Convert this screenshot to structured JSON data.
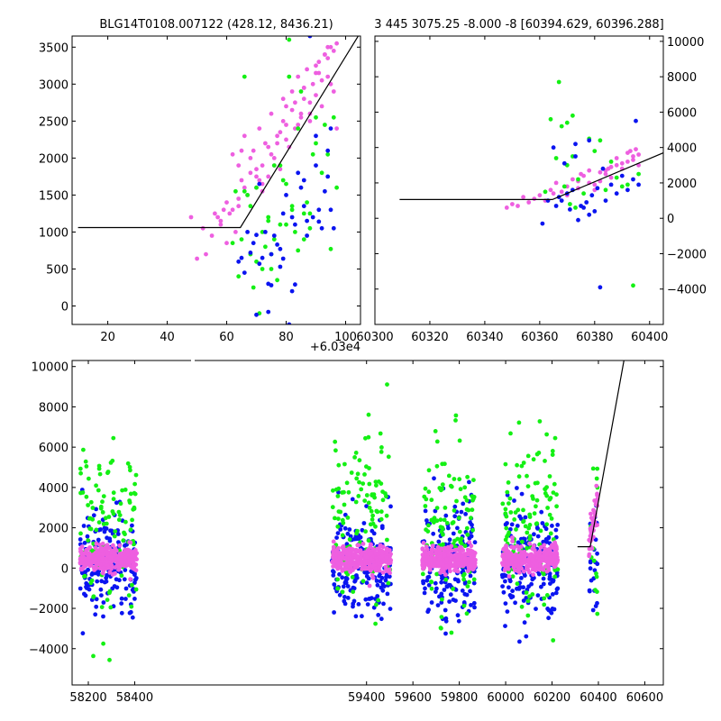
{
  "figure": {
    "top_left_title": "BLG14T0108.007122 (428.12, 8436.21)",
    "top_right_title": "3 445 3075.25 -8.000 -8 [60394.629, 60396.288]",
    "offset_text": "+6.03e4",
    "colors": {
      "blue": "#0a14f0",
      "green": "#14f014",
      "magenta": "#ee5fe0",
      "fit": "#000000"
    }
  },
  "chart_data": [
    {
      "type": "scatter",
      "panel": "top-left",
      "title": "BLG14T0108.007122 (428.12, 8436.21)",
      "xlim": [
        8,
        105
      ],
      "ylim": [
        -250,
        3650
      ],
      "x_offset_label": "+6.03e4",
      "xticks": [
        20,
        40,
        60,
        80,
        100
      ],
      "xtick_labels": [
        "20",
        "40",
        "60",
        "80",
        "100"
      ],
      "yticks": [
        0,
        500,
        1000,
        1500,
        2000,
        2500,
        3000,
        3500
      ],
      "ytick_labels": [
        "0",
        "500",
        "1000",
        "1500",
        "2000",
        "2500",
        "3000",
        "3500"
      ],
      "fit_line": {
        "x": [
          10,
          64.6,
          105
        ],
        "y": [
          1060,
          1060,
          3700
        ]
      },
      "series": [
        {
          "color": "magenta",
          "x": [
            48,
            50,
            52,
            53,
            55,
            57,
            58,
            59,
            60,
            61,
            62,
            63,
            64,
            65,
            66,
            67,
            68,
            69,
            70,
            71,
            72,
            73,
            74,
            75,
            76,
            77,
            78,
            79,
            80,
            81,
            82,
            83,
            84,
            85,
            86,
            87,
            88,
            89,
            90,
            91,
            92,
            93,
            94,
            95,
            96,
            97,
            62,
            64,
            66,
            68,
            70,
            72,
            74,
            76,
            78,
            80,
            82,
            84,
            86,
            88,
            90,
            92,
            94,
            96,
            58,
            60,
            65,
            70,
            75,
            80,
            85,
            90,
            95,
            72,
            77,
            83,
            88,
            93,
            56,
            64,
            71,
            79,
            86,
            91,
            94,
            97
          ],
          "y": [
            1200,
            640,
            1050,
            700,
            950,
            1200,
            1100,
            1300,
            850,
            1250,
            2050,
            1000,
            1350,
            1700,
            2300,
            1500,
            1800,
            2100,
            1600,
            2400,
            1900,
            2200,
            1750,
            2600,
            2000,
            2300,
            1850,
            2500,
            2700,
            2150,
            2900,
            2400,
            3100,
            2600,
            2800,
            3200,
            2500,
            3000,
            2850,
            3300,
            2700,
            3400,
            3100,
            3500,
            2900,
            3550,
            1300,
            1450,
            1600,
            2000,
            1750,
            1550,
            2150,
            1900,
            2350,
            2250,
            2650,
            2450,
            2950,
            2750,
            3150,
            3050,
            3350,
            3450,
            1150,
            1400,
            2100,
            1850,
            2050,
            2450,
            2550,
            3250,
            3000,
            1650,
            2200,
            2750,
            2600,
            3400,
            1250,
            1900,
            1700,
            2800,
            2950,
            3150,
            3500,
            2400
          ]
        },
        {
          "color": "green",
          "x": [
            62,
            64,
            65,
            66,
            67,
            68,
            69,
            70,
            71,
            72,
            73,
            74,
            75,
            76,
            77,
            78,
            79,
            80,
            81,
            82,
            83,
            84,
            85,
            86,
            87,
            88,
            90,
            92,
            94,
            96,
            66,
            70,
            74,
            78,
            82,
            86,
            90,
            95,
            68,
            72,
            76,
            80,
            84,
            88,
            93,
            97,
            63,
            75,
            81,
            89
          ],
          "y": [
            850,
            400,
            900,
            3100,
            1500,
            700,
            250,
            1600,
            -100,
            1000,
            800,
            1200,
            500,
            900,
            350,
            1100,
            1700,
            1650,
            3600,
            1350,
            1000,
            750,
            2900,
            1250,
            1400,
            1050,
            2550,
            1800,
            2050,
            2550,
            1550,
            600,
            1150,
            1900,
            1300,
            900,
            2200,
            770,
            1350,
            500,
            1900,
            1100,
            2400,
            1250,
            2450,
            1600,
            1550,
            700,
            3100,
            2050
          ]
        },
        {
          "color": "blue",
          "x": [
            64,
            65,
            66,
            68,
            69,
            70,
            71,
            72,
            73,
            74,
            75,
            76,
            77,
            78,
            79,
            80,
            81,
            82,
            83,
            84,
            85,
            86,
            87,
            88,
            89,
            90,
            91,
            92,
            93,
            94,
            95,
            96,
            67,
            71,
            75,
            79,
            83,
            87,
            91,
            95,
            70,
            74,
            78,
            82,
            86,
            90,
            94
          ],
          "y": [
            600,
            650,
            450,
            720,
            850,
            960,
            1650,
            650,
            1000,
            -80,
            700,
            950,
            830,
            770,
            1250,
            1500,
            -250,
            1200,
            1100,
            1800,
            1600,
            1700,
            1150,
            3650,
            1200,
            1900,
            1300,
            1050,
            1550,
            1750,
            2400,
            1050,
            1000,
            570,
            280,
            640,
            290,
            950,
            1140,
            1300,
            -120,
            300,
            530,
            200,
            1350,
            2300,
            2100
          ]
        }
      ]
    },
    {
      "type": "scatter",
      "panel": "top-right",
      "title": "3 445 3075.25 -8.000 -8 [60394.629, 60396.288]",
      "xlim": [
        60300,
        60405
      ],
      "ylim": [
        -6000,
        10300
      ],
      "xticks": [
        60300,
        60320,
        60340,
        60360,
        60380,
        60400
      ],
      "xtick_labels": [
        "60300",
        "60320",
        "60340",
        "60360",
        "60380",
        "60400"
      ],
      "yticks": [
        -4000,
        -2000,
        0,
        2000,
        4000,
        6000,
        8000,
        10000
      ],
      "ytick_labels": [
        "−4000",
        "−2000",
        "0",
        "2000",
        "4000",
        "6000",
        "8000",
        "10000"
      ],
      "fit_line": {
        "x": [
          60309,
          60364.6,
          60405
        ],
        "y": [
          1060,
          1060,
          3700
        ]
      },
      "series": [
        {
          "color": "magenta",
          "x": [
            60348,
            60350,
            60352,
            60354,
            60356,
            60358,
            60360,
            60362,
            60364,
            60366,
            60368,
            60370,
            60372,
            60374,
            60376,
            60378,
            60380,
            60382,
            60384,
            60386,
            60388,
            60390,
            60392,
            60394,
            60395,
            60396,
            60370,
            60374,
            60378,
            60382,
            60386,
            60390,
            60394,
            60380,
            60384,
            60388,
            60392,
            60396,
            60365,
            60375,
            60385,
            60393
          ],
          "y": [
            600,
            800,
            700,
            1200,
            900,
            1100,
            1300,
            1000,
            1600,
            2000,
            1500,
            1800,
            2200,
            2100,
            2400,
            2000,
            1900,
            2600,
            2500,
            2300,
            3000,
            2800,
            3200,
            3500,
            3900,
            3600,
            1300,
            1700,
            2700,
            2100,
            2900,
            3100,
            3300,
            1600,
            2700,
            3400,
            3700,
            3000,
            1400,
            2500,
            2800,
            3800
          ]
        },
        {
          "color": "green",
          "x": [
            60362,
            60364,
            60366,
            60367,
            60368,
            60369,
            60370,
            60371,
            60372,
            60373,
            60374,
            60376,
            60378,
            60380,
            60382,
            60384,
            60386,
            60388,
            60390,
            60392,
            60394,
            60396,
            60372,
            60370
          ],
          "y": [
            1500,
            5600,
            3400,
            7700,
            5200,
            1800,
            5400,
            800,
            5800,
            600,
            2200,
            1400,
            4500,
            3800,
            4400,
            1600,
            3200,
            2300,
            1800,
            1900,
            -3800,
            2500,
            3500,
            3000
          ]
        },
        {
          "color": "blue",
          "x": [
            60361,
            60363,
            60365,
            60366,
            60367,
            60368,
            60369,
            60370,
            60371,
            60372,
            60373,
            60374,
            60375,
            60376,
            60377,
            60378,
            60379,
            60380,
            60381,
            60382,
            60384,
            60386,
            60388,
            60390,
            60392,
            60394,
            60395,
            60396,
            60373,
            60378,
            60383
          ],
          "y": [
            -300,
            1000,
            4000,
            700,
            1200,
            1000,
            3100,
            1400,
            500,
            1600,
            4200,
            -100,
            700,
            600,
            900,
            200,
            1300,
            400,
            1700,
            -3900,
            1000,
            1900,
            1400,
            2400,
            1600,
            2200,
            5500,
            1900,
            3500,
            4400,
            2800
          ]
        }
      ]
    },
    {
      "type": "scatter",
      "panel": "bottom",
      "xlim": [
        58130,
        60680
      ],
      "ylim": [
        -5800,
        10300
      ],
      "xticks": [
        58200,
        58400,
        59400,
        59600,
        59800,
        60000,
        60200,
        60400,
        60600
      ],
      "xtick_labels": [
        "58200",
        "58400",
        "59400",
        "59600",
        "59800",
        "60000",
        "60200",
        "60400",
        "60600"
      ],
      "yticks": [
        -4000,
        -2000,
        0,
        2000,
        4000,
        6000,
        8000,
        10000
      ],
      "ytick_labels": [
        "−4000",
        "−2000",
        "0",
        "2000",
        "4000",
        "6000",
        "8000",
        "10000"
      ],
      "fit_line": {
        "x": [
          60310,
          60364.6,
          60510
        ],
        "y": [
          1060,
          1060,
          10300
        ]
      },
      "seasons": [
        {
          "xmin": 58165,
          "xmax": 58410
        },
        {
          "xmin": 59250,
          "xmax": 59505
        },
        {
          "xmin": 59640,
          "xmax": 59870
        },
        {
          "xmin": 59985,
          "xmax": 60225
        },
        {
          "xmin": 60360,
          "xmax": 60396
        }
      ],
      "series_colors": [
        "blue",
        "green",
        "magenta"
      ]
    }
  ]
}
